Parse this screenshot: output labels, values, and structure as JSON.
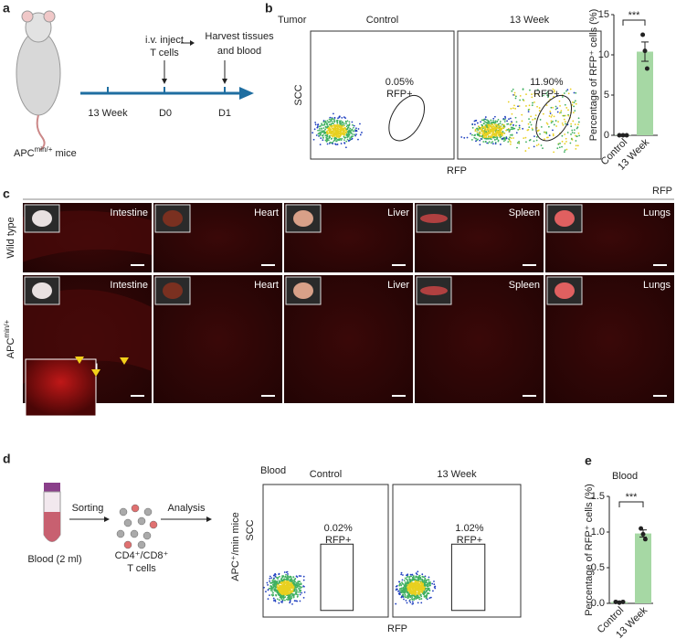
{
  "panels": {
    "a": {
      "label": "a",
      "step1": "i.v. inject",
      "step1b": "T cells",
      "step2": "Harvest tissues",
      "step2b": "and blood",
      "timeline": [
        "13 Week",
        "D0",
        "D1"
      ],
      "mouse": {
        "main": "APC",
        "sup": "min/+",
        "rest": " mice"
      }
    },
    "b": {
      "label": "b",
      "sample": "Tumor",
      "columns": [
        "Control",
        "13 Week"
      ],
      "y_axis": "SCC",
      "x_axis": "RFP",
      "gates": [
        {
          "percent": "0.05%",
          "label": "RFP+"
        },
        {
          "percent": "11.90%",
          "label": "RFP+"
        }
      ]
    },
    "c": {
      "label": "c",
      "channel": "RFP",
      "rows": [
        {
          "main": "Wild type",
          "sup": ""
        },
        {
          "main": "APC",
          "sup": "min/+"
        }
      ],
      "organs": [
        "Intestine",
        "Heart",
        "Liver",
        "Spleen",
        "Lungs"
      ]
    },
    "d": {
      "label": "d",
      "sample": "Blood (2 ml)",
      "step1": "Sorting",
      "step2": "Analysis",
      "cells": "CD4⁺/CD8⁺",
      "cells2": "T cells",
      "plot_title": "Blood",
      "columns": [
        "Control",
        "13 Week"
      ],
      "row_label": "APC⁺/min mice",
      "y_axis": "SCC",
      "x_axis": "RFP",
      "gates": [
        {
          "percent": "0.02%",
          "label": "RFP+"
        },
        {
          "percent": "1.02%",
          "label": "RFP+"
        }
      ]
    },
    "e": {
      "label": "e"
    }
  },
  "chart_data": [
    {
      "type": "bar",
      "categories": [
        "Control",
        "13 Week"
      ],
      "values": [
        0.05,
        10.4
      ],
      "errors": [
        0.01,
        1.2
      ],
      "points": [
        [
          0,
          0,
          0
        ],
        [
          12.5,
          10.5,
          8.3
        ]
      ],
      "color": "#a6d8a4",
      "ylabel": "Percentage of RFP⁺ cells (%)",
      "ylim": [
        0,
        15
      ],
      "yticks": [
        0,
        5,
        10,
        15
      ],
      "annotation": "***"
    },
    {
      "type": "bar",
      "title": "Blood",
      "categories": [
        "Control",
        "13 Week"
      ],
      "values": [
        0.02,
        0.98
      ],
      "errors": [
        0.01,
        0.05
      ],
      "points": [
        [
          0.02,
          0.01,
          0.02
        ],
        [
          1.05,
          0.97,
          0.9
        ]
      ],
      "color": "#a6d8a4",
      "ylabel": "Percentage of RFP⁺ cells (%)",
      "ylim": [
        0,
        1.5
      ],
      "yticks": [
        {
          "value": 0,
          "label": "0.0"
        },
        0.5,
        {
          "value": 1,
          "label": "1.0"
        },
        1.5
      ],
      "annotation": "***"
    }
  ]
}
